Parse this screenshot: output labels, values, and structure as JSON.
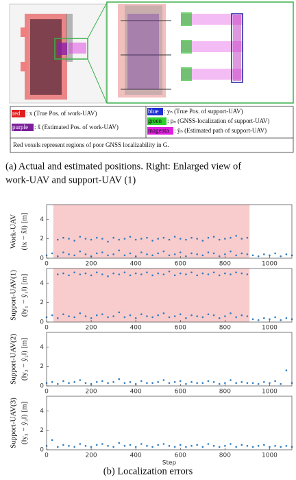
{
  "figure_a": {
    "legend": [
      {
        "tag": "red",
        "text": ": x (True Pos. of work-UAV)"
      },
      {
        "tag": "purple",
        "text": ": x̂ (Estimated Pos. of work-UAV)"
      },
      {
        "tag": "blue",
        "text": ": yₙ (True Pos. of support-UAV)"
      },
      {
        "tag": "green",
        "text": ": pₙ (GNSS-localization of support-UAV)"
      },
      {
        "tag": "magenta",
        "text": ": ŷₙ (Estimated path of support-UAV)"
      }
    ],
    "note": "Red voxels represent regions of poor GNSS localizability in G.",
    "caption": [
      "(a) Actual and estimated positions.  Right:  Enlarged view of",
      "work-UAV and support-UAV (1)"
    ]
  },
  "caption_b": "(b) Localization errors",
  "chart_data": [
    {
      "type": "scatter",
      "ylabel": [
        "Work-UAV",
        "(‖x − x̂‖) [m]"
      ],
      "xlim": [
        0,
        1100
      ],
      "ylim": [
        0,
        5.5
      ],
      "xticks": [
        0,
        200,
        400,
        600,
        800,
        1000
      ],
      "yticks": [
        0,
        2,
        4
      ],
      "shade": {
        "xlim": [
          30,
          910
        ],
        "color": "#f8cccc"
      },
      "series": [
        {
          "color": "#2f7bbf",
          "x": [
            0,
            25,
            50,
            75,
            100,
            125,
            150,
            175,
            200,
            225,
            250,
            275,
            300,
            325,
            350,
            375,
            400,
            425,
            450,
            475,
            500,
            525,
            550,
            575,
            600,
            625,
            650,
            675,
            700,
            725,
            750,
            775,
            800,
            825,
            850,
            875,
            900,
            925,
            950,
            975,
            1000,
            1025,
            1050,
            1075,
            1100
          ],
          "values": [
            0.3,
            0.5,
            0.2,
            0.6,
            0.4,
            0.3,
            0.7,
            0.4,
            0.2,
            0.5,
            0.6,
            0.3,
            0.4,
            0.8,
            0.3,
            0.5,
            0.2,
            0.6,
            0.4,
            0.3,
            0.5,
            0.7,
            0.3,
            0.4,
            0.6,
            0.2,
            0.5,
            0.4,
            0.3,
            0.6,
            0.5,
            0.2,
            0.4,
            0.7,
            0.3,
            0.5,
            0.4,
            0.3,
            0.2,
            0.4,
            0.3,
            0.5,
            0.2,
            0.4,
            0.3
          ]
        },
        {
          "color": "#2f7bbf",
          "x": [
            50,
            75,
            100,
            125,
            150,
            175,
            200,
            225,
            250,
            275,
            300,
            325,
            350,
            375,
            400,
            425,
            450,
            475,
            500,
            525,
            550,
            575,
            600,
            625,
            650,
            675,
            700,
            725,
            750,
            775,
            800,
            825,
            850,
            875,
            900
          ],
          "values": [
            1.9,
            2.1,
            2.0,
            1.8,
            2.2,
            2.0,
            1.9,
            2.1,
            2.0,
            1.7,
            2.1,
            1.9,
            2.0,
            2.2,
            1.9,
            2.0,
            2.1,
            1.8,
            2.0,
            2.1,
            1.9,
            2.2,
            2.0,
            1.9,
            2.1,
            2.0,
            1.8,
            2.1,
            2.2,
            1.9,
            2.0,
            2.1,
            2.3,
            2.0,
            2.1
          ]
        }
      ]
    },
    {
      "type": "scatter",
      "ylabel": [
        "Support-UAV(1)",
        "(‖y₁ − ŷ₁‖) [m]"
      ],
      "xlim": [
        0,
        1100
      ],
      "ylim": [
        0,
        5.5
      ],
      "xticks": [
        0,
        200,
        400,
        600,
        800,
        1000
      ],
      "yticks": [
        0,
        2,
        4
      ],
      "shade": {
        "xlim": [
          30,
          910
        ],
        "color": "#f8cccc"
      },
      "series": [
        {
          "color": "#2f7bbf",
          "x": [
            0,
            25,
            50,
            75,
            100,
            125,
            150,
            175,
            200,
            225,
            250,
            275,
            300,
            325,
            350,
            375,
            400,
            425,
            450,
            475,
            500,
            525,
            550,
            575,
            600,
            625,
            650,
            675,
            700,
            725,
            750,
            775,
            800,
            825,
            850,
            875,
            900,
            925,
            950,
            975,
            1000,
            1025,
            1050,
            1075,
            1100
          ],
          "values": [
            0.5,
            0.7,
            0.4,
            0.8,
            0.6,
            0.5,
            0.9,
            0.6,
            0.4,
            0.7,
            0.8,
            0.5,
            0.6,
            1.0,
            0.5,
            0.7,
            0.4,
            0.8,
            0.6,
            0.5,
            0.7,
            0.9,
            0.5,
            0.6,
            0.8,
            0.4,
            0.7,
            0.6,
            0.5,
            0.8,
            0.7,
            0.4,
            0.6,
            0.9,
            0.5,
            0.7,
            0.6,
            0.3,
            0.2,
            0.4,
            0.3,
            0.5,
            0.2,
            0.4,
            0.3
          ]
        },
        {
          "color": "#2f7bbf",
          "x": [
            50,
            75,
            100,
            125,
            150,
            175,
            200,
            225,
            250,
            275,
            300,
            325,
            350,
            375,
            400,
            425,
            450,
            475,
            500,
            525,
            550,
            575,
            600,
            625,
            650,
            675,
            700,
            725,
            750,
            775,
            800,
            825,
            850,
            875,
            900
          ],
          "values": [
            4.9,
            5.0,
            4.8,
            5.1,
            4.9,
            5.0,
            4.8,
            5.1,
            4.9,
            4.7,
            5.0,
            4.9,
            5.1,
            4.8,
            5.0,
            4.9,
            5.1,
            4.8,
            5.0,
            4.9,
            5.2,
            4.8,
            5.0,
            4.9,
            5.1,
            4.8,
            5.0,
            4.9,
            5.1,
            4.8,
            5.0,
            4.9,
            5.1,
            5.0,
            4.9
          ]
        }
      ]
    },
    {
      "type": "scatter",
      "ylabel": [
        "Support-UAV(2)",
        "(‖y₂ − ŷ₂‖) [m]"
      ],
      "xlim": [
        0,
        1100
      ],
      "ylim": [
        0,
        5.5
      ],
      "xticks": [
        0,
        200,
        400,
        600,
        800,
        1000
      ],
      "yticks": [
        0,
        2,
        4
      ],
      "series": [
        {
          "color": "#2f7bbf",
          "x": [
            0,
            25,
            50,
            75,
            100,
            125,
            150,
            175,
            200,
            225,
            250,
            275,
            300,
            325,
            350,
            375,
            400,
            425,
            450,
            475,
            500,
            525,
            550,
            575,
            600,
            625,
            650,
            675,
            700,
            725,
            750,
            775,
            800,
            825,
            850,
            875,
            900,
            925,
            950,
            975,
            1000,
            1025,
            1050,
            1075,
            1100
          ],
          "values": [
            0.3,
            0.4,
            0.2,
            0.5,
            0.3,
            0.4,
            0.6,
            0.3,
            0.2,
            0.4,
            0.5,
            0.3,
            0.4,
            0.7,
            0.3,
            0.4,
            0.2,
            0.5,
            0.3,
            0.3,
            0.4,
            0.6,
            0.3,
            0.4,
            0.5,
            0.2,
            0.4,
            0.3,
            0.3,
            0.5,
            0.4,
            0.2,
            0.3,
            0.6,
            0.3,
            0.4,
            0.3,
            0.3,
            0.2,
            0.4,
            0.3,
            0.5,
            0.2,
            1.6,
            0.3
          ]
        }
      ]
    },
    {
      "type": "scatter",
      "ylabel": [
        "Support-UAV(3)",
        "(‖y₃ − ŷ₃‖) [m]"
      ],
      "xlabel": "Step",
      "xlim": [
        0,
        1100
      ],
      "ylim": [
        0,
        5.5
      ],
      "xticks": [
        0,
        200,
        400,
        600,
        800,
        1000
      ],
      "yticks": [
        0,
        2,
        4
      ],
      "series": [
        {
          "color": "#2f7bbf",
          "x": [
            0,
            25,
            50,
            75,
            100,
            125,
            150,
            175,
            200,
            225,
            250,
            275,
            300,
            325,
            350,
            375,
            400,
            425,
            450,
            475,
            500,
            525,
            550,
            575,
            600,
            625,
            650,
            675,
            700,
            725,
            750,
            775,
            800,
            825,
            850,
            875,
            900,
            925,
            950,
            975,
            1000,
            1025,
            1050,
            1075,
            1100
          ],
          "values": [
            0.4,
            1.0,
            0.3,
            0.5,
            0.4,
            0.3,
            0.6,
            0.4,
            0.3,
            0.5,
            0.6,
            0.4,
            0.3,
            0.7,
            0.4,
            0.5,
            0.3,
            0.6,
            0.4,
            0.3,
            0.5,
            0.6,
            0.4,
            0.3,
            0.5,
            0.3,
            0.4,
            0.5,
            0.3,
            0.6,
            0.4,
            0.3,
            0.4,
            0.6,
            0.3,
            0.5,
            0.4,
            0.3,
            0.4,
            0.5,
            0.3,
            0.4,
            0.3,
            0.4,
            0.3
          ]
        }
      ]
    }
  ]
}
